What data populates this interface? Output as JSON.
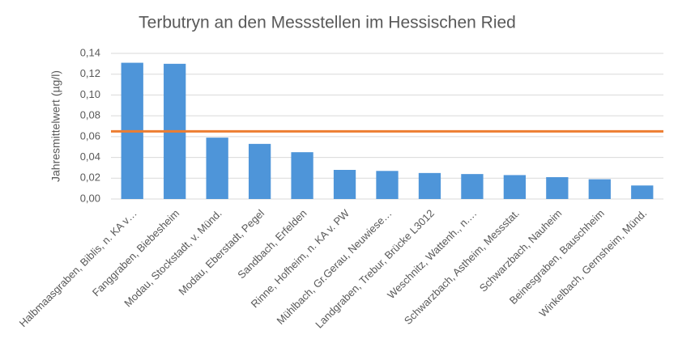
{
  "chart_data": {
    "type": "bar",
    "title": "Terbutryn an den Messstellen im Hessischen Ried",
    "y_label": "Jahresmittelwert (µg/l)",
    "categories": [
      "Halbmaasgraben, Biblis, n. KA v…",
      "Fanggraben, Biebesheim",
      "Modau, Stockstadt, v. Münd.",
      "Modau, Eberstadt, Pegel",
      "Sandbach, Erfelden",
      "Rinne, Hofheim, n. KA v. PW",
      "Mühlbach, Gr.Gerau, Neuwiese…",
      "Landgraben, Trebur, Brücke L3012",
      "Weschnitz, Wattenh., n.…",
      "Schwarzbach, Astheim, Messstat.",
      "Schwarzbach, Nauheim",
      "Beinesgraben, Bauschheim",
      "Winkelbach, Gernsheim, Münd."
    ],
    "values": [
      0.131,
      0.13,
      0.059,
      0.053,
      0.045,
      0.028,
      0.027,
      0.025,
      0.024,
      0.023,
      0.021,
      0.019,
      0.013
    ],
    "color": "#4e95d9",
    "threshold": 0.065,
    "threshold_color": "#ed7d31",
    "ylim": [
      0,
      0.14
    ],
    "yticks": [
      {
        "value": 0,
        "label": "0,00"
      },
      {
        "value": 0.02,
        "label": "0,02"
      },
      {
        "value": 0.04,
        "label": "0,04"
      },
      {
        "value": 0.06,
        "label": "0,06"
      },
      {
        "value": 0.08,
        "label": "0,08"
      },
      {
        "value": 0.1,
        "label": "0,10"
      },
      {
        "value": 0.12,
        "label": "0,12"
      },
      {
        "value": 0.14,
        "label": "0,14"
      }
    ],
    "grid": true
  }
}
